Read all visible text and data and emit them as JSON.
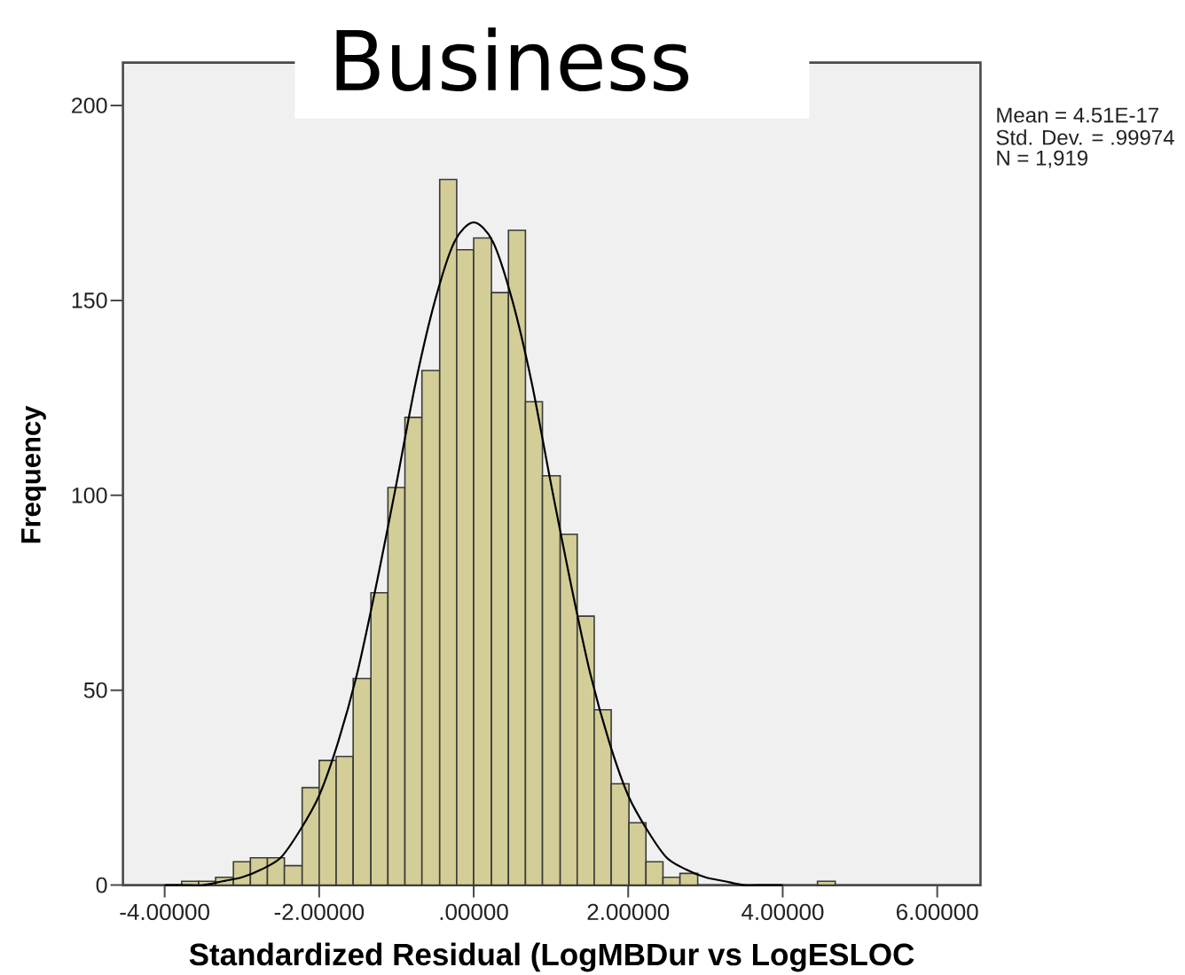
{
  "chart_data": {
    "type": "histogram",
    "title": "Business",
    "xlabel": "Standardized Residual (LogMBDur vs LogESLOC",
    "ylabel": "Frequency",
    "annotations": [
      "Mean = 4.51E-17",
      "Std. Dev. = .99974",
      "N = 1,919"
    ],
    "xlim": [
      -4.54,
      6.56
    ],
    "ylim": [
      0,
      211
    ],
    "xticks": [
      {
        "value": -4,
        "label": "-4.00000"
      },
      {
        "value": -2,
        "label": "-2.00000"
      },
      {
        "value": 0,
        "label": ".00000"
      },
      {
        "value": 2,
        "label": "2.00000"
      },
      {
        "value": 4,
        "label": "4.00000"
      },
      {
        "value": 6,
        "label": "6.00000"
      }
    ],
    "yticks": [
      0,
      50,
      100,
      150,
      200
    ],
    "series": [
      {
        "color": "#d3ce97",
        "bins": [
          -3.78,
          -3.56,
          -3.34,
          -3.11,
          -2.89,
          -2.67,
          -2.45,
          -2.22,
          -2.0,
          -1.78,
          -1.56,
          -1.33,
          -1.11,
          -0.89,
          -0.67,
          -0.44,
          -0.22,
          0.0,
          0.23,
          0.45,
          0.67,
          0.89,
          1.12,
          1.34,
          1.56,
          1.78,
          2.01,
          2.23,
          2.45,
          2.67,
          2.9
        ],
        "values": [
          1,
          1,
          2,
          6,
          7,
          7,
          5,
          25,
          32,
          33,
          53,
          75,
          102,
          120,
          132,
          181,
          163,
          166,
          152,
          168,
          124,
          105,
          90,
          69,
          45,
          26,
          16,
          6,
          2,
          3
        ]
      },
      {
        "color": "#d3ce97",
        "bins": [
          4.45,
          4.68
        ],
        "values": [
          1
        ]
      },
      {
        "type": "line",
        "color": "#000000",
        "x": [
          -4,
          -3.75,
          -3.5,
          -3.25,
          -3,
          -2.75,
          -2.5,
          -2.25,
          -2,
          -1.75,
          -1.5,
          -1.25,
          -1,
          -0.75,
          -0.5,
          -0.25,
          0,
          0.25,
          0.5,
          0.75,
          1,
          1.25,
          1.5,
          1.75,
          2,
          2.25,
          2.5,
          2.75,
          3,
          3.25,
          3.5,
          3.75,
          4
        ],
        "values": [
          0,
          0,
          0,
          1,
          2,
          4,
          7,
          14,
          23,
          37,
          55,
          78,
          103,
          129,
          150,
          165,
          170,
          165,
          150,
          129,
          103,
          78,
          55,
          37,
          23,
          14,
          7,
          4,
          2,
          1,
          0,
          0,
          0
        ]
      }
    ]
  }
}
